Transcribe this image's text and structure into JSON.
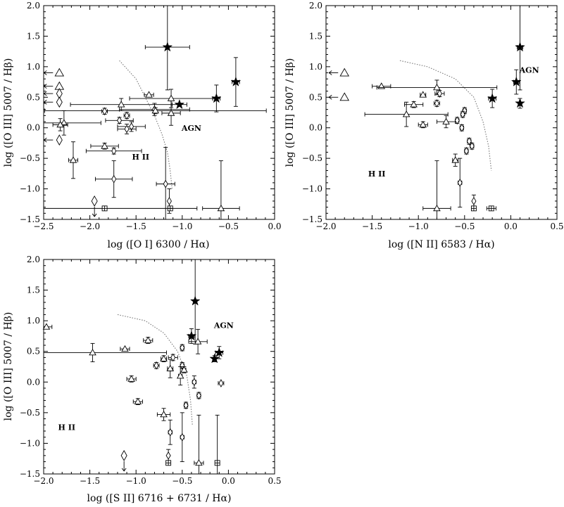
{
  "chart_data": [
    {
      "type": "scatter",
      "xlabel": "log ([O I] 6300 / Hα)",
      "ylabel": "log ([O III] 5007 / Hβ)",
      "xlim": [
        -2.5,
        0.0
      ],
      "ylim": [
        -1.5,
        2.0
      ],
      "xticks": [
        "−2.5",
        "−2.0",
        "−1.5",
        "−1.0",
        "−0.5",
        "0.0"
      ],
      "yticks": [
        "−1.5",
        "−1.0",
        "−0.5",
        "0.0",
        "0.5",
        "1.0",
        "1.5",
        "2.0"
      ],
      "region_labels": [
        {
          "text": "AGN",
          "x": -0.9,
          "y": -0.05
        },
        {
          "text": "H II",
          "x": -1.45,
          "y": -0.52
        }
      ],
      "demarcation": [
        [
          -1.68,
          1.1
        ],
        [
          -1.5,
          0.8
        ],
        [
          -1.4,
          0.5
        ],
        [
          -1.3,
          0.2
        ],
        [
          -1.22,
          -0.1
        ],
        [
          -1.16,
          -0.4
        ],
        [
          -1.13,
          -0.7
        ],
        [
          -1.11,
          -1.0
        ]
      ],
      "points": [
        {
          "m": "star",
          "x": -1.16,
          "y": 1.32,
          "xe": 0.24,
          "ye": [
            0.7,
            0.75
          ]
        },
        {
          "m": "star",
          "x": -0.42,
          "y": 0.75,
          "xe": 0.04,
          "ye": 0.4
        },
        {
          "m": "star",
          "x": -0.63,
          "y": 0.48,
          "xe": 0.04,
          "ye": 0.22
        },
        {
          "m": "star",
          "x": -1.03,
          "y": 0.38,
          "xe": 0.08,
          "ye": 0.0
        },
        {
          "m": "tri",
          "x": -1.36,
          "y": 0.54,
          "xe": 0.05,
          "ye": 0.0
        },
        {
          "m": "tri",
          "x": -1.12,
          "y": 0.48,
          "xe": 0.45,
          "ye": 0.15
        },
        {
          "m": "tri",
          "x": -1.66,
          "y": 0.38,
          "xe": 0.55,
          "ye": 0.1
        },
        {
          "m": "dia",
          "x": -1.3,
          "y": 0.3,
          "xe": 0.38,
          "ye": 0.1
        },
        {
          "m": "tri",
          "x": -1.29,
          "y": 0.28,
          "xe": 1.2,
          "ye": 0.05
        },
        {
          "m": "tri",
          "x": -1.12,
          "y": 0.24,
          "xe": 0.1,
          "ye": 0.2
        },
        {
          "m": "dia",
          "x": -1.84,
          "y": 0.27,
          "xe": 0.03,
          "ye": 0.05
        },
        {
          "m": "dia",
          "x": -1.6,
          "y": 0.2,
          "xe": 0.03,
          "ye": 0.05
        },
        {
          "m": "dia",
          "x": -1.68,
          "y": 0.12,
          "xe": 0.15,
          "ye": 0.05
        },
        {
          "m": "tri",
          "x": -2.28,
          "y": 0.08,
          "xe": 0.4,
          "ye": 0.2
        },
        {
          "m": "tri",
          "x": -2.32,
          "y": 0.05,
          "xe": 0.08,
          "ye": 0.1
        },
        {
          "m": "dia",
          "x": -1.55,
          "y": 0.02,
          "xe": 0.15,
          "ye": 0.08
        },
        {
          "m": "dia",
          "x": -1.6,
          "y": -0.02,
          "xe": 0.1,
          "ye": 0.08
        },
        {
          "m": "tri",
          "x": -1.84,
          "y": -0.3,
          "xe": 0.15,
          "ye": 0.05
        },
        {
          "m": "dia",
          "x": -1.74,
          "y": -0.38,
          "xe": 0.3,
          "ye": 0.05
        },
        {
          "m": "tri",
          "x": -2.18,
          "y": -0.53,
          "xe": 0.05,
          "ye": 0.3
        },
        {
          "m": "dia",
          "x": -1.74,
          "y": -0.84,
          "xe": 0.2,
          "ye": 0.3
        },
        {
          "m": "dia",
          "x": -1.18,
          "y": -0.92,
          "xe": 0.1,
          "ye": 0.6
        },
        {
          "m": "dia",
          "x": -1.14,
          "y": -1.2,
          "xe": 0.0,
          "ye": 0.2
        },
        {
          "m": "tri",
          "x": -0.58,
          "y": -1.32,
          "xe": 0.2,
          "ye": 0.78
        },
        {
          "m": "sq",
          "x": -1.13,
          "y": -1.32,
          "xe": 0.0,
          "ye": 0.0
        },
        {
          "m": "sq",
          "x": -1.84,
          "y": -1.32,
          "xe": 1.0,
          "ye": 0.0
        },
        {
          "m": "dia-down",
          "x": -1.95,
          "y": -1.2,
          "xe": 0.0,
          "ye": 0.0
        },
        {
          "m": "tri-left",
          "x": -2.33,
          "y": 0.9
        },
        {
          "m": "tri-left",
          "x": -2.33,
          "y": 0.68
        },
        {
          "m": "dia-left",
          "x": -2.33,
          "y": 0.56
        },
        {
          "m": "dia-left",
          "x": -2.33,
          "y": 0.42
        },
        {
          "m": "dia-left",
          "x": -2.33,
          "y": -0.2
        }
      ]
    },
    {
      "type": "scatter",
      "xlabel": "log ([N II] 6583 / Hα)",
      "ylabel": "log ([O III] 5007 / Hβ)",
      "xlim": [
        -2.0,
        0.5
      ],
      "ylim": [
        -1.5,
        2.0
      ],
      "xticks": [
        "−2.0",
        "−1.5",
        "−1.0",
        "−0.5",
        "0.0",
        "0.5"
      ],
      "yticks": [
        "−1.5",
        "−1.0",
        "−0.5",
        "0.0",
        "0.5",
        "1.0",
        "1.5",
        "2.0"
      ],
      "region_labels": [
        {
          "text": "AGN",
          "x": 0.2,
          "y": 0.9
        },
        {
          "text": "H II",
          "x": -1.45,
          "y": -0.8
        }
      ],
      "demarcation": [
        [
          -1.2,
          1.1
        ],
        [
          -0.9,
          1.0
        ],
        [
          -0.6,
          0.8
        ],
        [
          -0.4,
          0.5
        ],
        [
          -0.3,
          0.1
        ],
        [
          -0.24,
          -0.3
        ],
        [
          -0.21,
          -0.7
        ]
      ],
      "points": [
        {
          "m": "star",
          "x": 0.1,
          "y": 1.32,
          "xe": 0.03,
          "ye": [
            0.7,
            0.75
          ]
        },
        {
          "m": "star",
          "x": 0.06,
          "y": 0.75,
          "xe": 0.03,
          "ye": 0.2
        },
        {
          "m": "star",
          "x": -0.2,
          "y": 0.48,
          "xe": 0.04,
          "ye": 0.15
        },
        {
          "m": "star",
          "x": 0.1,
          "y": 0.4,
          "xe": 0.0,
          "ye": 0.08
        },
        {
          "m": "tri",
          "x": -1.4,
          "y": 0.68,
          "xe": 0.1,
          "ye": 0.0
        },
        {
          "m": "tri",
          "x": -0.8,
          "y": 0.66,
          "xe": 0.65,
          "ye": 0.12
        },
        {
          "m": "dia",
          "x": -0.77,
          "y": 0.56,
          "xe": 0.05,
          "ye": 0.05
        },
        {
          "m": "tri",
          "x": -0.95,
          "y": 0.54,
          "xe": 0.03,
          "ye": 0.0
        },
        {
          "m": "dia",
          "x": -0.8,
          "y": 0.4,
          "xe": 0.03,
          "ye": 0.05
        },
        {
          "m": "tri",
          "x": -1.05,
          "y": 0.38,
          "xe": 0.1,
          "ye": 0.05
        },
        {
          "m": "tri",
          "x": -1.13,
          "y": 0.22,
          "xe": 0.45,
          "ye": 0.2
        },
        {
          "m": "tri",
          "x": -0.95,
          "y": 0.05,
          "xe": 0.05,
          "ye": 0.05
        },
        {
          "m": "tri",
          "x": -0.7,
          "y": 0.1,
          "xe": 0.1,
          "ye": 0.1
        },
        {
          "m": "dia",
          "x": -0.5,
          "y": 0.28,
          "xe": 0.02,
          "ye": 0.05
        },
        {
          "m": "dia",
          "x": -0.52,
          "y": 0.22,
          "xe": 0.02,
          "ye": 0.05
        },
        {
          "m": "dia",
          "x": -0.58,
          "y": 0.12,
          "xe": 0.02,
          "ye": 0.05
        },
        {
          "m": "dia",
          "x": -0.53,
          "y": 0.0,
          "xe": 0.02,
          "ye": 0.05
        },
        {
          "m": "dia",
          "x": -0.45,
          "y": -0.22,
          "xe": 0.02,
          "ye": 0.05
        },
        {
          "m": "dia",
          "x": -0.42,
          "y": -0.3,
          "xe": 0.02,
          "ye": 0.05
        },
        {
          "m": "dia",
          "x": -0.48,
          "y": -0.38,
          "xe": 0.02,
          "ye": 0.05
        },
        {
          "m": "tri",
          "x": -0.6,
          "y": -0.53,
          "xe": 0.03,
          "ye": 0.1
        },
        {
          "m": "dia",
          "x": -0.55,
          "y": -0.9,
          "xe": 0.02,
          "ye": 0.4
        },
        {
          "m": "dia",
          "x": -0.4,
          "y": -1.2,
          "xe": 0.0,
          "ye": 0.1
        },
        {
          "m": "tri",
          "x": -0.8,
          "y": -1.32,
          "xe": 0.15,
          "ye": 0.78
        },
        {
          "m": "sq",
          "x": -0.4,
          "y": -1.32,
          "xe": 0.0,
          "ye": 0.0
        },
        {
          "m": "sq",
          "x": -0.21,
          "y": -1.32,
          "xe": 0.05,
          "ye": 0.0
        },
        {
          "m": "tri-left",
          "x": -1.8,
          "y": 0.9
        },
        {
          "m": "tri-left",
          "x": -1.8,
          "y": 0.5
        }
      ]
    },
    {
      "type": "scatter",
      "xlabel": "log ([S II] 6716 + 6731 / Hα)",
      "ylabel": "log ([O III] 5007 / Hβ)",
      "xlim": [
        -2.0,
        0.5
      ],
      "ylim": [
        -1.5,
        2.0
      ],
      "xticks": [
        "−2.0",
        "−1.5",
        "−1.0",
        "−0.5",
        "0.0",
        "0.5"
      ],
      "yticks": [
        "−1.5",
        "−1.0",
        "−0.5",
        "0.0",
        "0.5",
        "1.0",
        "1.5",
        "2.0"
      ],
      "region_labels": [
        {
          "text": "AGN",
          "x": -0.05,
          "y": 0.88
        },
        {
          "text": "H II",
          "x": -1.75,
          "y": -0.78
        }
      ],
      "demarcation": [
        [
          -1.2,
          1.1
        ],
        [
          -0.9,
          1.0
        ],
        [
          -0.7,
          0.8
        ],
        [
          -0.55,
          0.5
        ],
        [
          -0.45,
          0.1
        ],
        [
          -0.41,
          -0.3
        ],
        [
          -0.39,
          -0.7
        ]
      ],
      "points": [
        {
          "m": "star",
          "x": -0.36,
          "y": 1.32,
          "xe": 0.0,
          "ye": [
            0.7,
            0.8
          ]
        },
        {
          "m": "star",
          "x": -0.4,
          "y": 0.75,
          "xe": 0.03,
          "ye": 0.12
        },
        {
          "m": "star",
          "x": -0.1,
          "y": 0.48,
          "xe": 0.04,
          "ye": 0.1
        },
        {
          "m": "star",
          "x": -0.15,
          "y": 0.38,
          "xe": 0.0,
          "ye": 0.05
        },
        {
          "m": "tri",
          "x": -1.97,
          "y": 0.9,
          "xe": 0.06,
          "ye": 0.0
        },
        {
          "m": "tri",
          "x": -0.87,
          "y": 0.68,
          "xe": 0.05,
          "ye": 0.05
        },
        {
          "m": "tri",
          "x": -0.33,
          "y": 0.66,
          "xe": 0.1,
          "ye": 0.2
        },
        {
          "m": "dia",
          "x": -0.5,
          "y": 0.56,
          "xe": 0.02,
          "ye": 0.05
        },
        {
          "m": "tri",
          "x": -1.12,
          "y": 0.54,
          "xe": 0.05,
          "ye": 0.0
        },
        {
          "m": "tri",
          "x": -1.47,
          "y": 0.48,
          "xe": 0.8,
          "ye": 0.15
        },
        {
          "m": "dia",
          "x": -0.6,
          "y": 0.4,
          "xe": 0.05,
          "ye": 0.05
        },
        {
          "m": "tri",
          "x": -0.7,
          "y": 0.38,
          "xe": 0.03,
          "ye": 0.05
        },
        {
          "m": "dia",
          "x": -0.78,
          "y": 0.27,
          "xe": 0.03,
          "ye": 0.05
        },
        {
          "m": "dia",
          "x": -0.5,
          "y": 0.27,
          "xe": 0.02,
          "ye": 0.05
        },
        {
          "m": "tri",
          "x": -0.63,
          "y": 0.22,
          "xe": 0.03,
          "ye": 0.15
        },
        {
          "m": "tri",
          "x": -0.48,
          "y": 0.2,
          "xe": 0.02,
          "ye": 0.05
        },
        {
          "m": "tri",
          "x": -0.52,
          "y": 0.1,
          "xe": 0.02,
          "ye": 0.15
        },
        {
          "m": "tri",
          "x": -1.05,
          "y": 0.05,
          "xe": 0.05,
          "ye": 0.05
        },
        {
          "m": "dia",
          "x": -0.37,
          "y": 0.0,
          "xe": 0.02,
          "ye": 0.1
        },
        {
          "m": "dia",
          "x": -0.08,
          "y": -0.02,
          "xe": 0.03,
          "ye": 0.0
        },
        {
          "m": "dia",
          "x": -0.32,
          "y": -0.22,
          "xe": 0.02,
          "ye": 0.05
        },
        {
          "m": "tri",
          "x": -0.98,
          "y": -0.32,
          "xe": 0.05,
          "ye": 0.05
        },
        {
          "m": "dia",
          "x": -0.46,
          "y": -0.38,
          "xe": 0.02,
          "ye": 0.05
        },
        {
          "m": "tri",
          "x": -0.7,
          "y": -0.53,
          "xe": 0.07,
          "ye": 0.1
        },
        {
          "m": "dia",
          "x": -0.63,
          "y": -0.82,
          "xe": 0.02,
          "ye": 0.2
        },
        {
          "m": "dia",
          "x": -0.5,
          "y": -0.9,
          "xe": 0.02,
          "ye": 0.4
        },
        {
          "m": "dia",
          "x": -0.65,
          "y": -1.2,
          "xe": 0.0,
          "ye": 0.1
        },
        {
          "m": "tri",
          "x": -0.32,
          "y": -1.32,
          "xe": 0.05,
          "ye": 0.78
        },
        {
          "m": "sq",
          "x": -0.65,
          "y": -1.32,
          "xe": 0.0,
          "ye": 0.0
        },
        {
          "m": "sq",
          "x": -0.12,
          "y": -1.32,
          "xe": 0.0,
          "ye": 0.78
        },
        {
          "m": "dia-down",
          "x": -1.13,
          "y": -1.2,
          "xe": 0.0,
          "ye": 0.0
        }
      ]
    }
  ]
}
